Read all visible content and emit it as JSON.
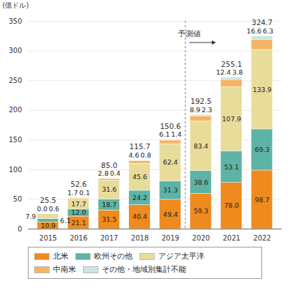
{
  "chart_data": {
    "type": "bar",
    "stacked": true,
    "y_label": "(億ドル)",
    "categories": [
      "2015",
      "2016",
      "2017",
      "2018",
      "2019",
      "2020",
      "2021",
      "2022"
    ],
    "series": [
      {
        "name": "北米",
        "color": "#ee8a1e",
        "values": [
          10.9,
          21.1,
          31.5,
          40.4,
          49.4,
          59.3,
          78.0,
          98.7
        ],
        "value_labels": [
          "10.9",
          "21.1",
          "31.5",
          "40.4",
          "49.4",
          "59.3",
          "78.0",
          "98.7"
        ]
      },
      {
        "name": "欧州その他",
        "color": "#5db3a6",
        "values": [
          6.1,
          12.0,
          18.7,
          24.2,
          31.3,
          38.6,
          53.1,
          69.3
        ],
        "value_labels": [
          "6.1",
          "12.0",
          "18.7",
          "24.2",
          "31.3",
          "38.6",
          "53.1",
          "69.3"
        ]
      },
      {
        "name": "アジア太平洋",
        "color": "#e8dc9a",
        "values": [
          7.9,
          17.7,
          31.6,
          45.6,
          62.4,
          83.4,
          107.9,
          133.9
        ],
        "value_labels": [
          "7.9",
          "17.7",
          "31.6",
          "45.6",
          "62.4",
          "83.4",
          "107.9",
          "133.9"
        ]
      },
      {
        "name": "中南米",
        "color": "#f5b463",
        "values": [
          0.0,
          1.7,
          2.8,
          4.6,
          6.1,
          8.9,
          12.4,
          16.6
        ],
        "value_labels": [
          "0.0",
          "1.7",
          "2.8",
          "4.6",
          "6.1",
          "8.9",
          "12.4",
          "16.6"
        ]
      },
      {
        "name": "その他・地域別集計不能",
        "color": "#c9e6e0",
        "values": [
          0.6,
          0.1,
          0.4,
          0.8,
          1.4,
          2.3,
          3.8,
          6.3
        ],
        "value_labels": [
          "0.6",
          "0.1",
          "0.4",
          "0.8",
          "1.4",
          "2.3",
          "3.8",
          "6.3"
        ]
      }
    ],
    "totals": [
      25.5,
      52.6,
      85.0,
      115.7,
      150.6,
      192.5,
      255.1,
      324.7
    ],
    "total_labels": [
      "25.5",
      "52.6",
      "85.0",
      "115.7",
      "150.6",
      "192.5",
      "255.1",
      "324.7"
    ],
    "annotations": [
      {
        "text": "予測値",
        "x": "2020"
      }
    ],
    "ylim": [
      0,
      350
    ],
    "yticks": [
      0,
      50,
      100,
      150,
      200,
      250,
      300,
      350
    ],
    "grid": true,
    "data_labels": true,
    "legend": "bottom"
  }
}
